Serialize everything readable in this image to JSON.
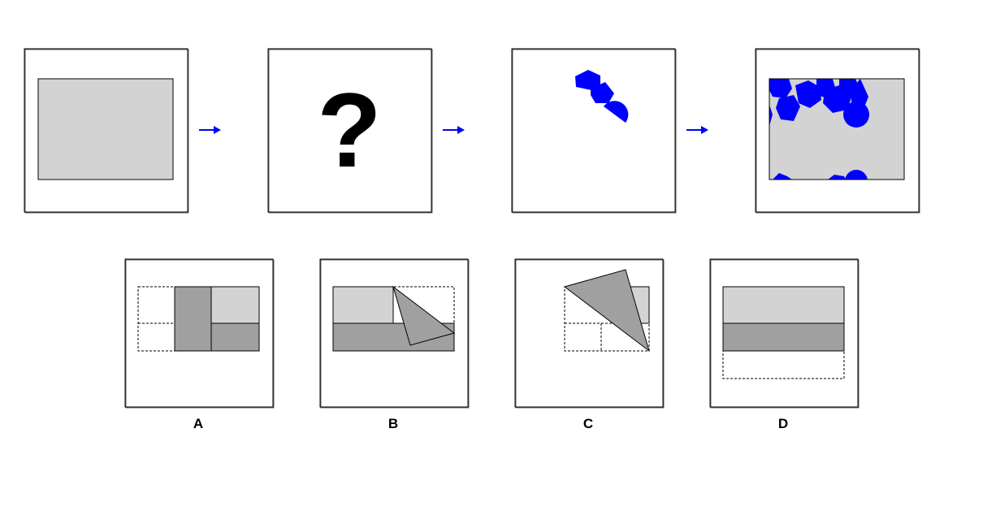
{
  "colors": {
    "light_gray": "#d3d3d3",
    "dark_gray": "#a0a0a0",
    "blue": "#0000ff",
    "border": "#000000"
  },
  "sequence": {
    "unknown_symbol": "?",
    "arrow_icon": "right-arrow-icon"
  },
  "options": [
    {
      "label": "A"
    },
    {
      "label": "B"
    },
    {
      "label": "C"
    },
    {
      "label": "D"
    }
  ]
}
